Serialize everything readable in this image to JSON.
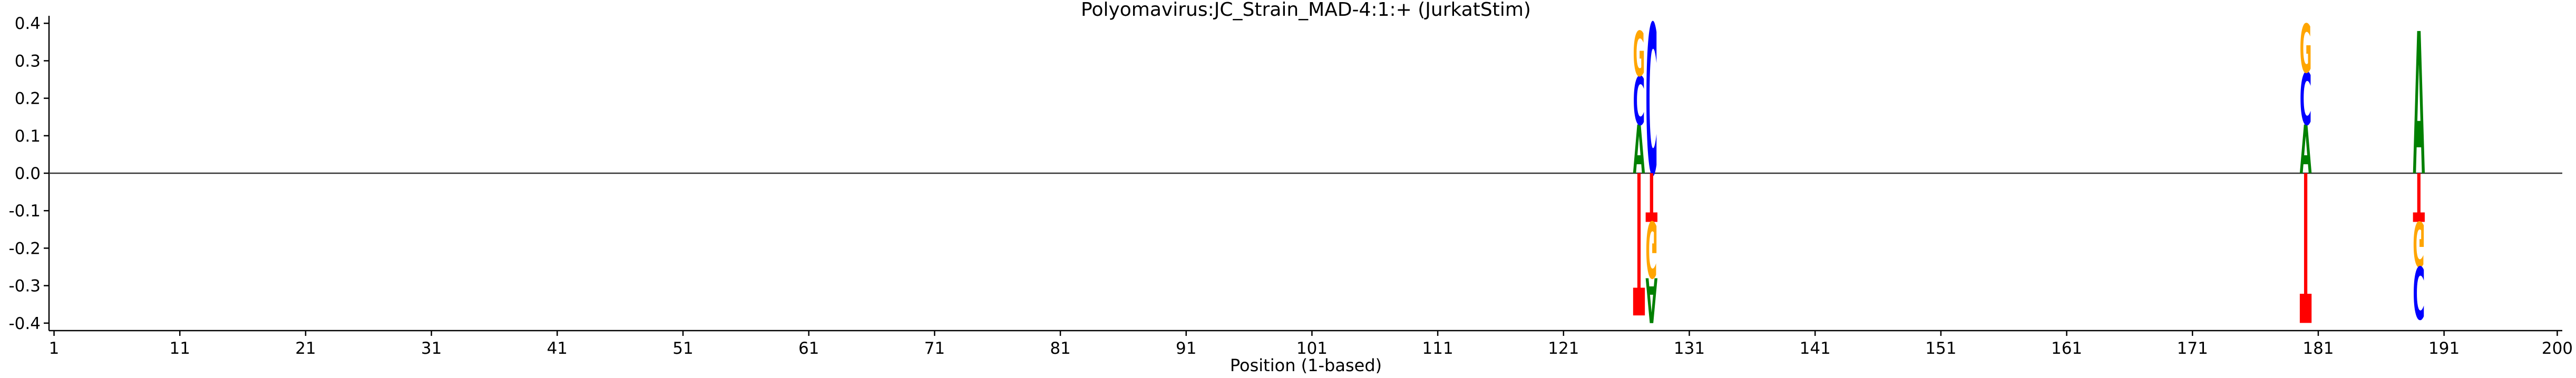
{
  "chart_data": {
    "type": "logo",
    "title": "Polyomavirus:JC_Strain_MAD-4:1:+  (JurkatStim)",
    "xlabel": "Position (1-based)",
    "x": [
      127,
      128,
      180,
      189
    ],
    "series": [
      {
        "name": "A",
        "color": "#008000",
        "values": [
          0.13,
          -0.12,
          0.13,
          0.38
        ]
      },
      {
        "name": "C",
        "color": "#0000ff",
        "values": [
          0.13,
          0.4,
          0.14,
          -0.14
        ]
      },
      {
        "name": "G",
        "color": "#ffa500",
        "values": [
          0.12,
          -0.15,
          0.13,
          -0.12
        ]
      },
      {
        "name": "T",
        "color": "#ff0000",
        "values": [
          -0.38,
          -0.13,
          -0.4,
          -0.13
        ]
      }
    ],
    "xlim": [
      0.6,
      200.4
    ],
    "ylim": [
      -0.42,
      0.42
    ],
    "xticks": [
      1,
      11,
      21,
      31,
      41,
      51,
      61,
      71,
      81,
      91,
      101,
      111,
      121,
      131,
      141,
      151,
      161,
      171,
      181,
      191,
      200
    ],
    "yticks": [
      -0.4,
      -0.3,
      -0.2,
      -0.1,
      0.0,
      0.1,
      0.2,
      0.3,
      0.4
    ]
  }
}
